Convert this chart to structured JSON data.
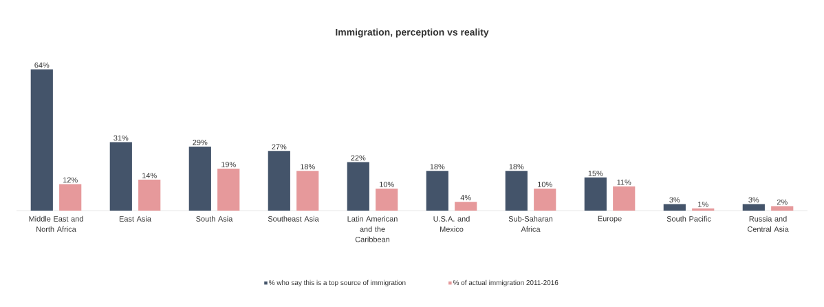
{
  "chart_data": {
    "type": "bar",
    "title": "Immigration, perception vs reality",
    "categories": [
      "Middle East and North Africa",
      "East Asia",
      "South Asia",
      "Southeast Asia",
      "Latin American and the Caribbean",
      "U.S.A. and Mexico",
      "Sub-Saharan Africa",
      "Europe",
      "South Pacific",
      "Russia and Central Asia"
    ],
    "series": [
      {
        "name": "% who say this is a top source of immigration",
        "color": "#44546a",
        "values": [
          64,
          31,
          29,
          27,
          22,
          18,
          18,
          15,
          3,
          3
        ],
        "value_labels": [
          "64%",
          "31%",
          "29%",
          "27%",
          "22%",
          "18%",
          "18%",
          "15%",
          "3%",
          "3%"
        ]
      },
      {
        "name": "% of actual immigration 2011-2016",
        "color": "#e6999b",
        "values": [
          12,
          14,
          19,
          18,
          10,
          4,
          10,
          11,
          1,
          2
        ],
        "value_labels": [
          "12%",
          "14%",
          "19%",
          "18%",
          "10%",
          "4%",
          "10%",
          "11%",
          "1%",
          "2%"
        ]
      }
    ],
    "legend": "bottom"
  }
}
